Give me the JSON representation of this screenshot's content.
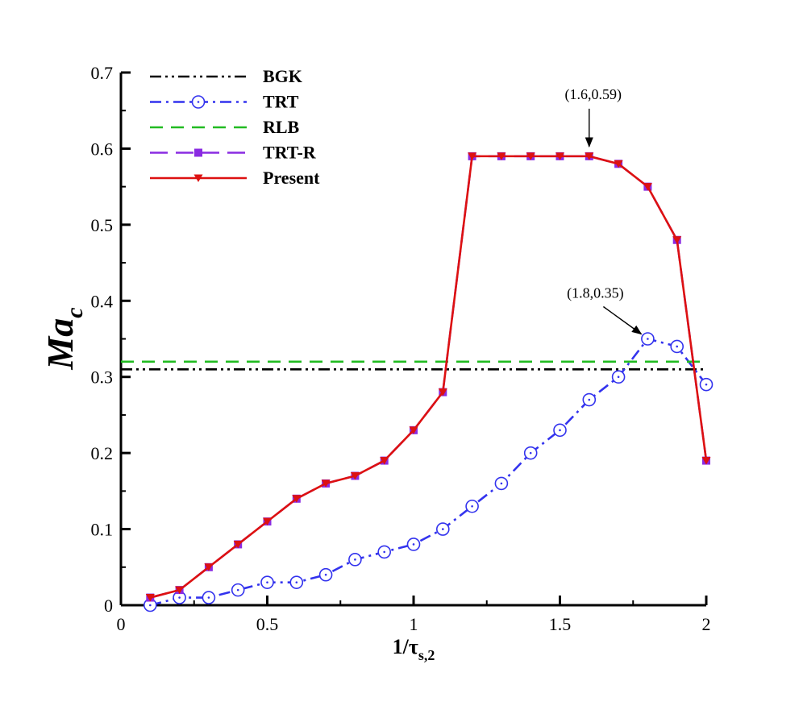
{
  "chart_data": {
    "type": "line",
    "xlabel": {
      "main": "1/τ",
      "sub": "s,2"
    },
    "ylabel": {
      "main": "Ma",
      "sub": "c"
    },
    "xlim": [
      0,
      2
    ],
    "ylim": [
      0,
      0.7
    ],
    "xticks": [
      {
        "value": 0,
        "label": "0"
      },
      {
        "value": 0.5,
        "label": "0.5"
      },
      {
        "value": 1,
        "label": "1"
      },
      {
        "value": 1.5,
        "label": "1.5"
      },
      {
        "value": 2,
        "label": "2"
      }
    ],
    "yticks": [
      {
        "value": 0,
        "label": "0"
      },
      {
        "value": 0.1,
        "label": "0.1"
      },
      {
        "value": 0.2,
        "label": "0.2"
      },
      {
        "value": 0.3,
        "label": "0.3"
      },
      {
        "value": 0.4,
        "label": "0.4"
      },
      {
        "value": 0.5,
        "label": "0.5"
      },
      {
        "value": 0.6,
        "label": "0.6"
      },
      {
        "value": 0.7,
        "label": "0.7"
      }
    ],
    "legend_position": "top-left",
    "series": [
      {
        "name": "BGK",
        "color": "#000000",
        "style": "dash-dot-dot",
        "marker": "none",
        "x": [
          0,
          2
        ],
        "y": [
          0.31,
          0.31
        ]
      },
      {
        "name": "TRT",
        "color": "#3333ee",
        "style": "dash-dot",
        "marker": "circle",
        "x": [
          0.1,
          0.2,
          0.3,
          0.4,
          0.5,
          0.6,
          0.7,
          0.8,
          0.9,
          1.0,
          1.1,
          1.2,
          1.3,
          1.4,
          1.5,
          1.6,
          1.7,
          1.8,
          1.9,
          2.0
        ],
        "y": [
          0.0,
          0.01,
          0.01,
          0.02,
          0.03,
          0.03,
          0.04,
          0.06,
          0.07,
          0.08,
          0.1,
          0.13,
          0.16,
          0.2,
          0.23,
          0.27,
          0.3,
          0.35,
          0.34,
          0.29
        ]
      },
      {
        "name": "RLB",
        "color": "#22bb22",
        "style": "dashed",
        "marker": "none",
        "x": [
          0,
          2
        ],
        "y": [
          0.32,
          0.32
        ]
      },
      {
        "name": "TRT-R",
        "color": "#8a2be2",
        "style": "long-dash",
        "marker": "square",
        "x": [
          0.1,
          0.2,
          0.3,
          0.4,
          0.5,
          0.6,
          0.7,
          0.8,
          0.9,
          1.0,
          1.1,
          1.2,
          1.3,
          1.4,
          1.5,
          1.6,
          1.7,
          1.8,
          1.9,
          2.0
        ],
        "y": [
          0.01,
          0.02,
          0.05,
          0.08,
          0.11,
          0.14,
          0.16,
          0.17,
          0.19,
          0.23,
          0.28,
          0.59,
          0.59,
          0.59,
          0.59,
          0.59,
          0.58,
          0.55,
          0.48,
          0.19
        ]
      },
      {
        "name": "Present",
        "color": "#dd1111",
        "style": "solid",
        "marker": "triangle-down",
        "x": [
          0.1,
          0.2,
          0.3,
          0.4,
          0.5,
          0.6,
          0.7,
          0.8,
          0.9,
          1.0,
          1.1,
          1.2,
          1.3,
          1.4,
          1.5,
          1.6,
          1.7,
          1.8,
          1.9,
          2.0
        ],
        "y": [
          0.01,
          0.02,
          0.05,
          0.08,
          0.11,
          0.14,
          0.16,
          0.17,
          0.19,
          0.23,
          0.28,
          0.59,
          0.59,
          0.59,
          0.59,
          0.59,
          0.58,
          0.55,
          0.48,
          0.19
        ]
      }
    ],
    "annotations": [
      {
        "text": "(1.6,0.59)",
        "x": 1.6,
        "y": 0.59,
        "arrow": "down"
      },
      {
        "text": "(1.8,0.35)",
        "x": 1.8,
        "y": 0.35,
        "arrow": "down-right"
      }
    ]
  }
}
